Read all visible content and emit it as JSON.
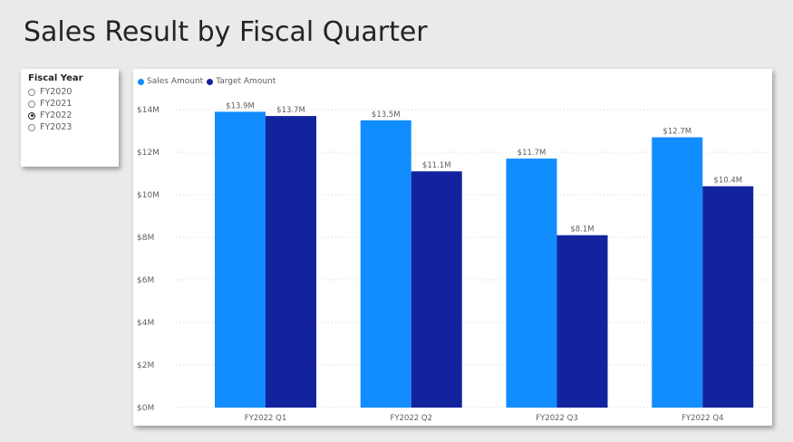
{
  "page": {
    "title": "Sales Result by Fiscal Quarter"
  },
  "slicer": {
    "title": "Fiscal Year",
    "options": [
      {
        "label": "FY2020",
        "selected": false
      },
      {
        "label": "FY2021",
        "selected": false
      },
      {
        "label": "FY2022",
        "selected": true
      },
      {
        "label": "FY2023",
        "selected": false
      }
    ]
  },
  "chart_data": {
    "type": "bar",
    "title": "",
    "xlabel": "",
    "ylabel": "",
    "categories": [
      "FY2022 Q1",
      "FY2022 Q2",
      "FY2022 Q3",
      "FY2022 Q4"
    ],
    "series": [
      {
        "name": "Sales Amount",
        "color": "#118dff",
        "values": [
          13.9,
          13.5,
          11.7,
          12.7
        ],
        "labels": [
          "$13.9M",
          "$13.5M",
          "$11.7M",
          "$12.7M"
        ]
      },
      {
        "name": "Target Amount",
        "color": "#12239e",
        "values": [
          13.7,
          11.1,
          8.1,
          10.4
        ],
        "labels": [
          "$13.7M",
          "$11.1M",
          "$8.1M",
          "$10.4M"
        ]
      }
    ],
    "yticks": [
      {
        "value": 0,
        "label": "$0M"
      },
      {
        "value": 2,
        "label": "$2M"
      },
      {
        "value": 4,
        "label": "$4M"
      },
      {
        "value": 6,
        "label": "$6M"
      },
      {
        "value": 8,
        "label": "$8M"
      },
      {
        "value": 10,
        "label": "$10M"
      },
      {
        "value": 12,
        "label": "$12M"
      },
      {
        "value": 14,
        "label": "$14M"
      }
    ],
    "ylim": [
      0,
      14.3
    ],
    "grid": true,
    "legend_position": "top-left"
  }
}
